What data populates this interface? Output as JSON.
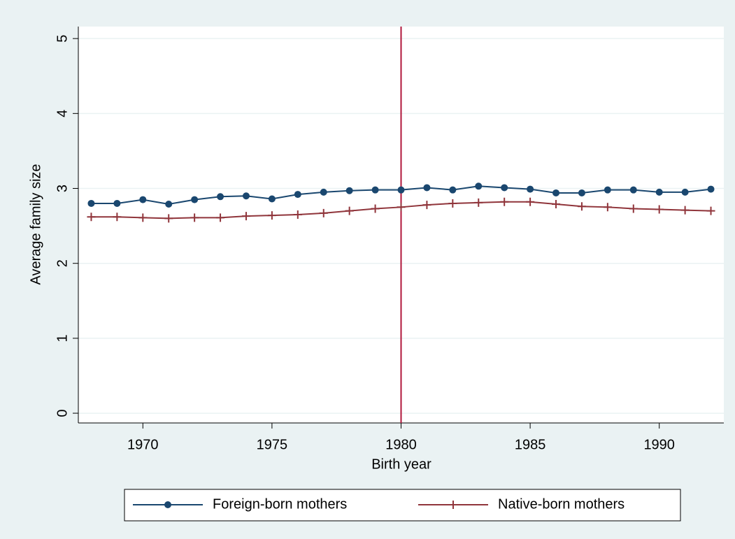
{
  "chart_data": {
    "type": "line",
    "x_label": "Birth year",
    "y_label": "Average family size",
    "x": [
      1968,
      1969,
      1970,
      1971,
      1972,
      1973,
      1974,
      1975,
      1976,
      1977,
      1978,
      1979,
      1980,
      1981,
      1982,
      1983,
      1984,
      1985,
      1986,
      1987,
      1988,
      1989,
      1990,
      1991,
      1992
    ],
    "series": [
      {
        "name": "Foreign-born mothers",
        "color": "#1a476f",
        "marker": "circle",
        "values": [
          2.8,
          2.8,
          2.85,
          2.79,
          2.85,
          2.89,
          2.9,
          2.86,
          2.92,
          2.95,
          2.97,
          2.98,
          2.98,
          3.01,
          2.98,
          3.03,
          3.01,
          2.99,
          2.94,
          2.94,
          2.98,
          2.98,
          2.95,
          2.95,
          2.99
        ]
      },
      {
        "name": "Native-born mothers",
        "color": "#90353b",
        "marker": "plus",
        "values": [
          2.62,
          2.62,
          2.61,
          2.6,
          2.61,
          2.61,
          2.63,
          2.64,
          2.65,
          2.67,
          2.7,
          2.73,
          2.75,
          2.78,
          2.8,
          2.81,
          2.82,
          2.82,
          2.79,
          2.76,
          2.75,
          2.73,
          2.72,
          2.71,
          2.7
        ]
      }
    ],
    "xlim": [
      1967.5,
      1992.5
    ],
    "xticks": [
      1970,
      1975,
      1980,
      1985,
      1990
    ],
    "ylim": [
      -0.13,
      5.16
    ],
    "yticks": [
      0,
      1,
      2,
      3,
      4,
      5
    ],
    "vline": {
      "x": 1980,
      "color": "#b0173b"
    },
    "grid": true,
    "legend": "bottom"
  }
}
